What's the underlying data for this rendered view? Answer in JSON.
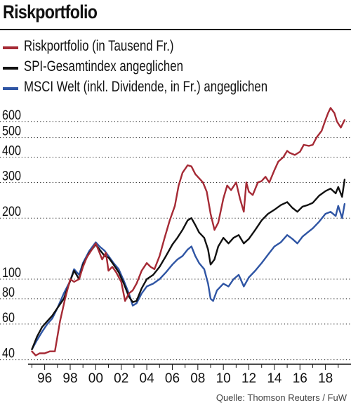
{
  "title": "Riskportfolio",
  "source": "Quelle: Thomson Reuters / FuW",
  "chart_data": {
    "type": "line",
    "title": "Riskportfolio",
    "xlabel": "",
    "ylabel": "",
    "y_scale": "log",
    "ylim": [
      38,
      720
    ],
    "xlim": [
      1994.7,
      2020.0
    ],
    "x_tick_values": [
      1996,
      1998,
      2000,
      2002,
      2004,
      2006,
      2008,
      2010,
      2012,
      2014,
      2016,
      2018
    ],
    "x_tick_labels": [
      "96",
      "98",
      "00",
      "02",
      "04",
      "06",
      "08",
      "10",
      "12",
      "14",
      "16",
      "18"
    ],
    "y_tick_values": [
      40,
      60,
      80,
      100,
      200,
      300,
      400,
      500,
      600
    ],
    "y_tick_labels": [
      "40",
      "60",
      "80",
      "100",
      "200",
      "300",
      "400",
      "500",
      "600"
    ],
    "grid": "horizontal dotted",
    "legend_position": "top",
    "series": [
      {
        "name": "Riskportfolio (in Tausend Fr.)",
        "color": "#a52a35",
        "x": [
          1995.0,
          1995.3,
          1995.6,
          1996.0,
          1996.4,
          1996.8,
          1997.2,
          1997.6,
          1998.0,
          1998.3,
          1998.7,
          1999.0,
          1999.3,
          1999.7,
          2000.0,
          2000.2,
          2000.5,
          2000.8,
          2001.0,
          2001.3,
          2001.6,
          2002.0,
          2002.3,
          2002.6,
          2002.9,
          2003.2,
          2003.6,
          2004.0,
          2004.3,
          2004.6,
          2005.0,
          2005.4,
          2005.8,
          2006.2,
          2006.5,
          2006.8,
          2007.2,
          2007.5,
          2007.8,
          2008.1,
          2008.4,
          2008.7,
          2009.0,
          2009.3,
          2009.6,
          2010.0,
          2010.3,
          2010.6,
          2011.0,
          2011.3,
          2011.6,
          2011.8,
          2012.0,
          2012.3,
          2012.7,
          2013.0,
          2013.3,
          2013.6,
          2014.0,
          2014.3,
          2014.7,
          2015.0,
          2015.2,
          2015.6,
          2016.0,
          2016.3,
          2016.7,
          2017.0,
          2017.3,
          2017.7,
          2018.0,
          2018.2,
          2018.4,
          2018.7,
          2018.9,
          2019.2,
          2019.5
        ],
        "values": [
          44,
          42,
          43,
          43,
          44,
          44,
          62,
          80,
          100,
          97,
          100,
          115,
          128,
          140,
          150,
          140,
          125,
          135,
          110,
          115,
          108,
          97,
          78,
          85,
          88,
          95,
          110,
          120,
          115,
          112,
          130,
          160,
          195,
          230,
          290,
          335,
          365,
          360,
          330,
          315,
          300,
          270,
          210,
          175,
          190,
          250,
          290,
          275,
          300,
          250,
          215,
          300,
          270,
          260,
          300,
          305,
          320,
          300,
          345,
          380,
          400,
          430,
          420,
          410,
          425,
          460,
          455,
          460,
          500,
          540,
          610,
          660,
          700,
          660,
          600,
          560,
          610
        ]
      },
      {
        "name": "SPI-Gesamtindex angeglichen",
        "color": "#111111",
        "x": [
          1995.0,
          1995.4,
          1995.8,
          1996.2,
          1996.6,
          1997.0,
          1997.5,
          1998.0,
          1998.3,
          1998.7,
          1999.0,
          1999.5,
          2000.0,
          2000.3,
          2000.7,
          2001.0,
          2001.4,
          2001.8,
          2002.2,
          2002.6,
          2002.9,
          2003.2,
          2003.6,
          2004.0,
          2004.5,
          2005.0,
          2005.5,
          2006.0,
          2006.4,
          2006.8,
          2007.2,
          2007.5,
          2007.8,
          2008.1,
          2008.5,
          2008.8,
          2009.0,
          2009.3,
          2009.6,
          2010.0,
          2010.4,
          2010.8,
          2011.2,
          2011.6,
          2012.0,
          2012.5,
          2013.0,
          2013.5,
          2014.0,
          2014.5,
          2015.0,
          2015.4,
          2015.8,
          2016.2,
          2016.6,
          2017.0,
          2017.5,
          2018.0,
          2018.4,
          2018.8,
          2019.0,
          2019.3,
          2019.5
        ],
        "values": [
          45,
          52,
          58,
          62,
          66,
          72,
          80,
          98,
          110,
          100,
          118,
          135,
          148,
          140,
          130,
          128,
          118,
          108,
          95,
          82,
          77,
          78,
          90,
          100,
          105,
          115,
          130,
          148,
          160,
          175,
          195,
          200,
          185,
          170,
          160,
          140,
          118,
          125,
          145,
          160,
          150,
          160,
          165,
          150,
          158,
          175,
          195,
          210,
          220,
          232,
          240,
          225,
          215,
          228,
          232,
          238,
          258,
          272,
          280,
          265,
          285,
          255,
          310
        ]
      },
      {
        "name": "MSCI Welt (inkl. Dividende, in Fr.) angeglichen",
        "color": "#2f55a4",
        "x": [
          1995.0,
          1995.4,
          1995.8,
          1996.2,
          1996.6,
          1997.0,
          1997.5,
          1998.0,
          1998.3,
          1998.7,
          1999.0,
          1999.5,
          2000.0,
          2000.3,
          2000.7,
          2001.0,
          2001.4,
          2001.8,
          2002.2,
          2002.6,
          2002.9,
          2003.2,
          2003.6,
          2004.0,
          2004.5,
          2005.0,
          2005.5,
          2006.0,
          2006.4,
          2006.8,
          2007.2,
          2007.5,
          2007.8,
          2008.1,
          2008.5,
          2008.8,
          2009.0,
          2009.2,
          2009.5,
          2010.0,
          2010.4,
          2010.8,
          2011.2,
          2011.6,
          2012.0,
          2012.5,
          2013.0,
          2013.5,
          2014.0,
          2014.5,
          2015.0,
          2015.4,
          2015.8,
          2016.2,
          2016.6,
          2017.0,
          2017.5,
          2018.0,
          2018.4,
          2018.8,
          2019.0,
          2019.3,
          2019.5
        ],
        "values": [
          45,
          50,
          55,
          60,
          64,
          72,
          85,
          98,
          112,
          105,
          120,
          138,
          152,
          145,
          138,
          130,
          120,
          112,
          98,
          85,
          74,
          76,
          85,
          92,
          95,
          100,
          108,
          118,
          125,
          130,
          140,
          145,
          130,
          120,
          112,
          95,
          80,
          78,
          88,
          95,
          92,
          100,
          105,
          92,
          102,
          110,
          120,
          132,
          145,
          152,
          165,
          158,
          150,
          162,
          170,
          178,
          192,
          210,
          215,
          205,
          230,
          200,
          235
        ]
      }
    ]
  }
}
